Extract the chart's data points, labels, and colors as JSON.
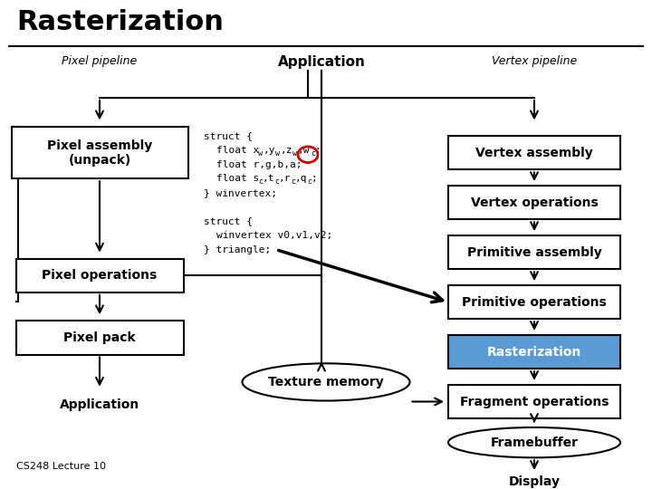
{
  "title": "Rasterization",
  "bg_color": "#ffffff",
  "footer": "CS248 Lecture 10",
  "subtitle_pixel": "Pixel pipeline",
  "subtitle_app": "Application",
  "subtitle_vertex": "Vertex pipeline",
  "rast_fill": "#5b9bd5",
  "rast_text_color": "#ffffff",
  "line_color": "#000000",
  "lw": 1.5
}
